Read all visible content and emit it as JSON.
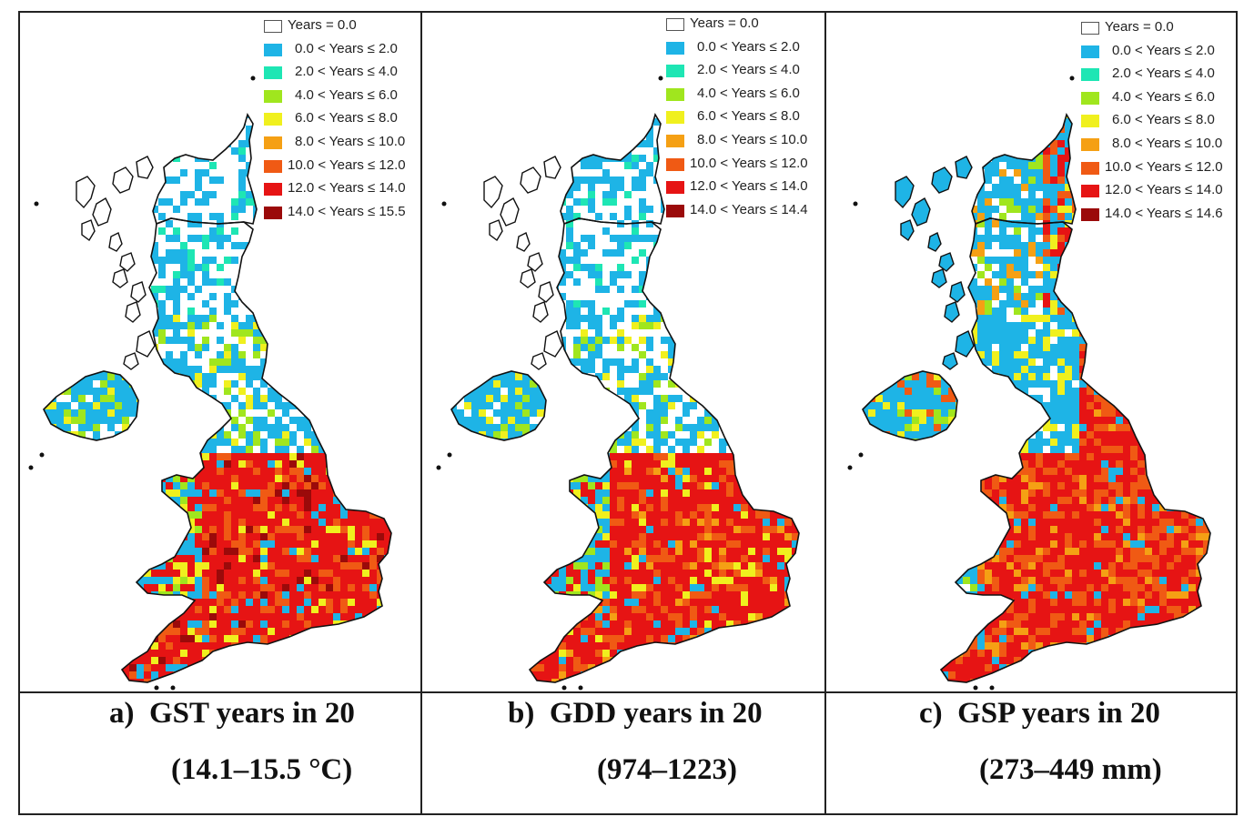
{
  "panels": [
    {
      "id": "a",
      "caption_prefix": "a)",
      "caption_title": "GST years in 20",
      "caption_range": "(14.1–15.5 °C)",
      "legend": [
        {
          "label": "Years = 0.0",
          "color": "#ffffff"
        },
        {
          "label": "0.0 < Years ≤ 2.0",
          "color": "#1eb4e6"
        },
        {
          "label": "2.0 < Years ≤ 4.0",
          "color": "#1ee6b4"
        },
        {
          "label": "4.0 < Years ≤ 6.0",
          "color": "#a0e61e"
        },
        {
          "label": "6.0 < Years ≤ 8.0",
          "color": "#f0f01e"
        },
        {
          "label": "8.0 < Years ≤ 10.0",
          "color": "#f5a014"
        },
        {
          "label": "10.0 < Years ≤ 12.0",
          "color": "#f05a14"
        },
        {
          "label": "12.0 < Years ≤ 14.0",
          "color": "#e61414"
        },
        {
          "label": "14.0 < Years ≤ 15.5",
          "color": "#9b0a0a"
        }
      ]
    },
    {
      "id": "b",
      "caption_prefix": "b)",
      "caption_title": "GDD years in 20",
      "caption_range": "(974–1223)",
      "legend": [
        {
          "label": "Years = 0.0",
          "color": "#ffffff"
        },
        {
          "label": "0.0 < Years ≤ 2.0",
          "color": "#1eb4e6"
        },
        {
          "label": "2.0 < Years ≤ 4.0",
          "color": "#1ee6b4"
        },
        {
          "label": "4.0 < Years ≤ 6.0",
          "color": "#a0e61e"
        },
        {
          "label": "6.0 < Years ≤ 8.0",
          "color": "#f0f01e"
        },
        {
          "label": "8.0 < Years ≤ 10.0",
          "color": "#f5a014"
        },
        {
          "label": "10.0 < Years ≤ 12.0",
          "color": "#f05a14"
        },
        {
          "label": "12.0 < Years ≤ 14.0",
          "color": "#e61414"
        },
        {
          "label": "14.0 < Years ≤ 14.4",
          "color": "#9b0a0a"
        }
      ]
    },
    {
      "id": "c",
      "caption_prefix": "c)",
      "caption_title": "GSP years in 20",
      "caption_range": "(273–449 mm)",
      "legend": [
        {
          "label": "Years = 0.0",
          "color": "#ffffff"
        },
        {
          "label": "0.0 < Years ≤ 2.0",
          "color": "#1eb4e6"
        },
        {
          "label": "2.0 < Years ≤ 4.0",
          "color": "#1ee6b4"
        },
        {
          "label": "4.0 < Years ≤ 6.0",
          "color": "#a0e61e"
        },
        {
          "label": "6.0 < Years ≤ 8.0",
          "color": "#f0f01e"
        },
        {
          "label": "8.0 < Years ≤ 10.0",
          "color": "#f5a014"
        },
        {
          "label": "10.0 < Years ≤ 12.0",
          "color": "#f05a14"
        },
        {
          "label": "12.0 < Years ≤ 14.0",
          "color": "#e61414"
        },
        {
          "label": "14.0 < Years ≤ 14.6",
          "color": "#9b0a0a"
        }
      ]
    }
  ]
}
